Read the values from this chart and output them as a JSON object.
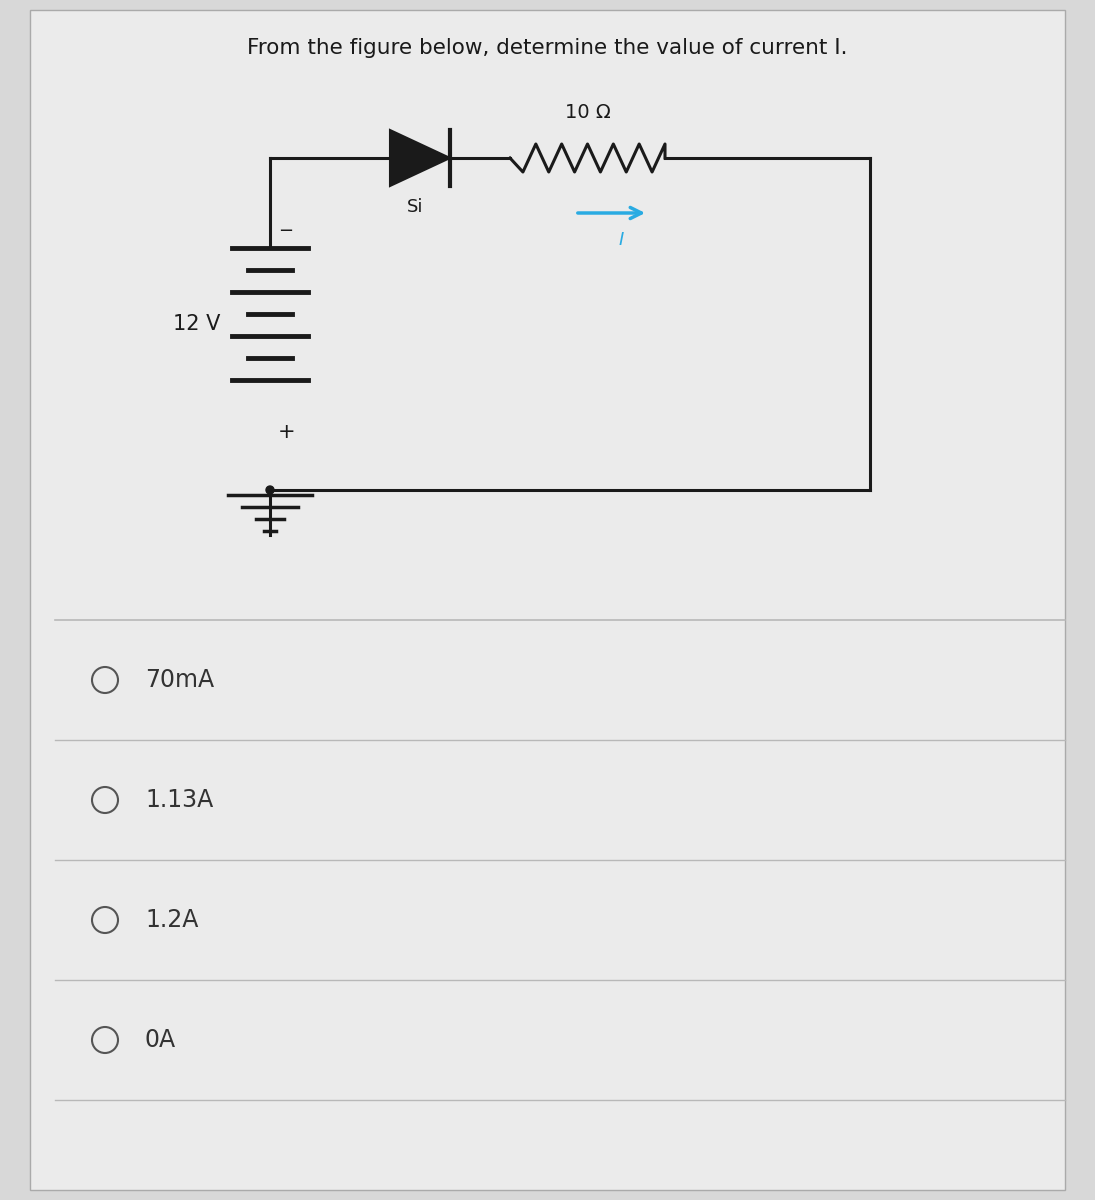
{
  "title": "From the figure below, determine the value of current I.",
  "title_fontsize": 15.5,
  "bg_color": "#d8d8d8",
  "panel_color": "#ebebeb",
  "circuit_color": "#1a1a1a",
  "current_arrow_color": "#29abe2",
  "resistor_label": "10 Ω",
  "diode_label": "Si",
  "voltage_label": "12 V",
  "current_label": "I",
  "choices": [
    "70mA",
    "1.13A",
    "1.2A",
    "0A"
  ],
  "choice_fontsize": 17,
  "divider_color": "#b8b8b8",
  "minus_label": "−",
  "plus_label": "+"
}
